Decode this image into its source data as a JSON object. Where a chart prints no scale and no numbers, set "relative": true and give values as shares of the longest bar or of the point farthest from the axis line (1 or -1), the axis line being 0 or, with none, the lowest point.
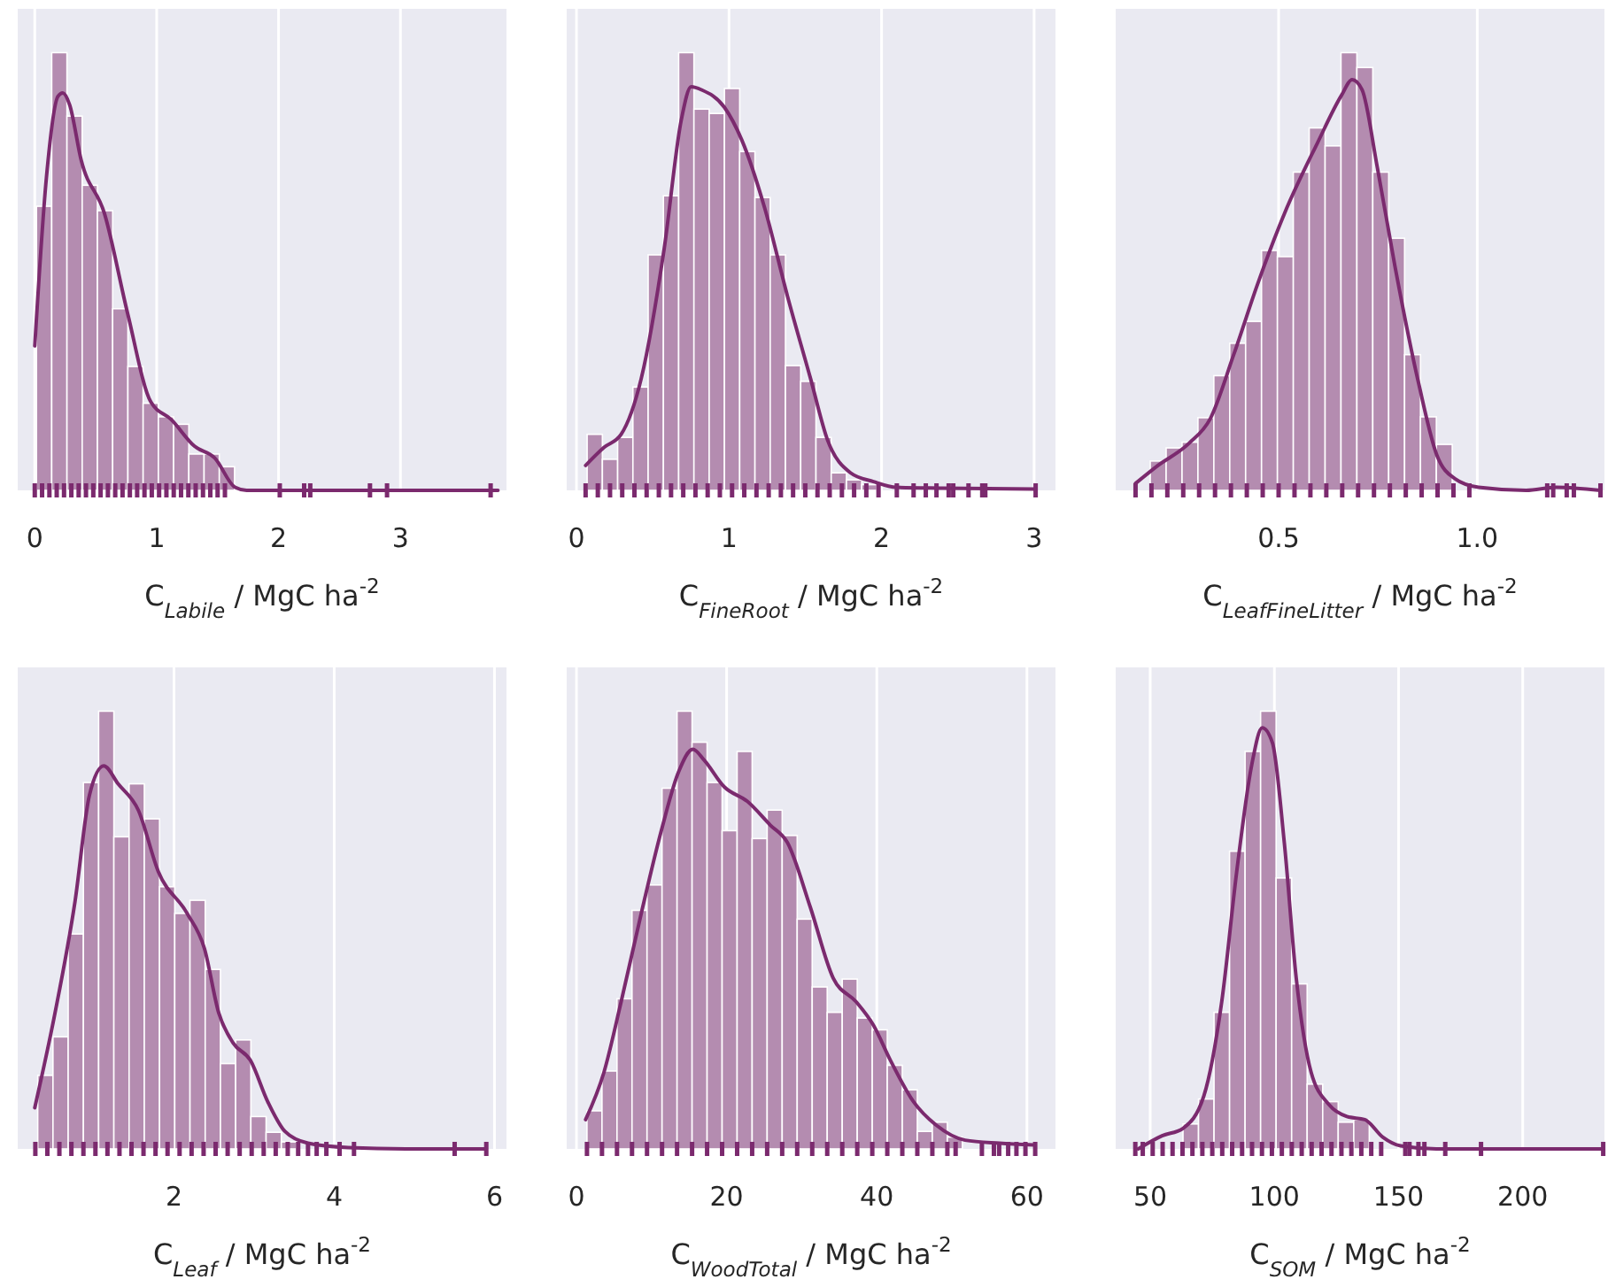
{
  "chart_data": [
    {
      "type": "histogram",
      "relative": true,
      "xlabel": "C$_{Labile}$ / MgC ha$^{-2}$",
      "color": "#b48cb0",
      "xlim": [
        -0.14,
        3.87
      ],
      "xticks": [
        0,
        1,
        2,
        3
      ],
      "grid": "x",
      "bins": [
        0.014,
        0.139,
        0.264,
        0.389,
        0.514,
        0.639,
        0.764,
        0.889,
        1.014,
        1.139,
        1.264,
        1.389,
        1.514,
        1.639
      ],
      "values": [
        0.649,
        1,
        0.855,
        0.697,
        0.639,
        0.415,
        0.283,
        0.199,
        0.168,
        0.151,
        0.083,
        0.083,
        0.054
      ],
      "series": [
        {
          "type": "line",
          "color": "#7b2a6e",
          "x": [
            0,
            0.095,
            0.19,
            0.23,
            0.286,
            0.381,
            0.571,
            0.762,
            0.952,
            1.119,
            1.31,
            1.476,
            1.643,
            1.738,
            3.8
          ],
          "values": [
            0.33,
            0.713,
            0.9,
            0.908,
            0.881,
            0.754,
            0.633,
            0.404,
            0.202,
            0.162,
            0.101,
            0.074,
            0.007,
            0,
            0
          ]
        },
        {
          "type": "scatter",
          "color": "#7b2a6e",
          "x": [
            0,
            0.06,
            0.12,
            0.18,
            0.24,
            0.3,
            0.36,
            0.42,
            0.48,
            0.54,
            0.6,
            0.66,
            0.72,
            0.78,
            0.84,
            0.9,
            0.96,
            1.02,
            1.08,
            1.14,
            1.2,
            1.26,
            1.32,
            1.38,
            1.44,
            1.5,
            1.56,
            2.01,
            2.21,
            2.26,
            2.75,
            2.89,
            3.74
          ],
          "values": [
            0,
            0,
            0,
            0,
            0,
            0,
            0,
            0,
            0,
            0,
            0,
            0,
            0,
            0,
            0,
            0,
            0,
            0,
            0,
            0,
            0,
            0,
            0,
            0,
            0,
            0,
            0,
            0,
            0,
            0,
            0,
            0,
            0
          ]
        }
      ]
    },
    {
      "type": "histogram",
      "relative": true,
      "xlabel": "C$_{FineRoot}$ / MgC ha$^{-2}$",
      "color": "#b48cb0",
      "xlim": [
        -0.064,
        3.14
      ],
      "xticks": [
        0,
        1,
        2,
        3
      ],
      "grid": "x",
      "bins": [
        0.07,
        0.17,
        0.27,
        0.37,
        0.47,
        0.57,
        0.67,
        0.77,
        0.87,
        0.97,
        1.07,
        1.17,
        1.27,
        1.37,
        1.47,
        1.57,
        1.67,
        1.77,
        1.87,
        1.97
      ],
      "values": [
        0.128,
        0.071,
        0.121,
        0.236,
        0.538,
        0.673,
        1,
        0.871,
        0.861,
        0.918,
        0.774,
        0.669,
        0.538,
        0.285,
        0.249,
        0.121,
        0.04,
        0.024,
        0.013
      ],
      "series": [
        {
          "type": "line",
          "color": "#7b2a6e",
          "x": [
            0.06,
            0.18,
            0.293,
            0.425,
            0.575,
            0.688,
            0.752,
            0.82,
            0.97,
            1.083,
            1.233,
            1.383,
            1.534,
            1.647,
            1.797,
            1.947,
            2.098,
            2.398,
            3.0
          ],
          "values": [
            0.057,
            0.098,
            0.128,
            0.256,
            0.552,
            0.848,
            0.922,
            0.915,
            0.875,
            0.801,
            0.646,
            0.444,
            0.256,
            0.114,
            0.04,
            0.02,
            0.007,
            0.005,
            0.003
          ]
        },
        {
          "type": "scatter",
          "color": "#7b2a6e",
          "x": [
            0.06,
            0.14,
            0.22,
            0.3,
            0.38,
            0.46,
            0.54,
            0.62,
            0.7,
            0.78,
            0.86,
            0.94,
            1.02,
            1.1,
            1.18,
            1.26,
            1.34,
            1.42,
            1.5,
            1.58,
            1.66,
            1.74,
            1.82,
            1.9,
            1.98,
            2.1,
            2.21,
            2.29,
            2.36,
            2.44,
            2.47,
            2.57,
            2.66,
            2.68,
            3.01
          ],
          "values": [
            0,
            0,
            0,
            0,
            0,
            0,
            0,
            0,
            0,
            0,
            0,
            0,
            0,
            0,
            0,
            0,
            0,
            0,
            0,
            0,
            0,
            0,
            0,
            0,
            0,
            0,
            0,
            0,
            0,
            0,
            0,
            0,
            0,
            0,
            0
          ]
        }
      ]
    },
    {
      "type": "histogram",
      "relative": true,
      "xlabel": "C$_{LeafFineLitter}$ / MgC ha$^{-2}$",
      "color": "#b48cb0",
      "xlim": [
        0.09,
        1.32
      ],
      "xticks": [
        0.5,
        {
          "value": 1,
          "label": "1.0"
        }
      ],
      "grid": "x",
      "bins": [
        0.177,
        0.217,
        0.257,
        0.297,
        0.337,
        0.377,
        0.417,
        0.457,
        0.497,
        0.537,
        0.577,
        0.617,
        0.657,
        0.697,
        0.737,
        0.777,
        0.817,
        0.857,
        0.897,
        0.937
      ],
      "values": [
        0.067,
        0.097,
        0.11,
        0.166,
        0.262,
        0.336,
        0.386,
        0.548,
        0.534,
        0.727,
        0.828,
        0.787,
        1,
        0.966,
        0.727,
        0.576,
        0.31,
        0.168,
        0.105
      ],
      "series": [
        {
          "type": "line",
          "color": "#7b2a6e",
          "x": [
            0.14,
            0.192,
            0.275,
            0.327,
            0.387,
            0.447,
            0.515,
            0.598,
            0.658,
            0.685,
            0.71,
            0.748,
            0.793,
            0.853,
            0.898,
            0.943,
            1.003,
            1.123,
            1.198,
            1.31
          ],
          "values": [
            0.016,
            0.054,
            0.108,
            0.162,
            0.31,
            0.471,
            0.633,
            0.794,
            0.902,
            0.938,
            0.915,
            0.74,
            0.511,
            0.242,
            0.081,
            0.027,
            0.007,
            0,
            0.007,
            0
          ]
        },
        {
          "type": "scatter",
          "color": "#7b2a6e",
          "x": [
            0.14,
            0.18,
            0.22,
            0.26,
            0.3,
            0.34,
            0.38,
            0.42,
            0.46,
            0.5,
            0.54,
            0.58,
            0.62,
            0.66,
            0.7,
            0.74,
            0.78,
            0.82,
            0.86,
            0.9,
            0.94,
            0.98,
            1.176,
            1.191,
            1.225,
            1.243,
            1.31
          ],
          "values": [
            0,
            0,
            0,
            0,
            0,
            0,
            0,
            0,
            0,
            0,
            0,
            0,
            0,
            0,
            0,
            0,
            0,
            0,
            0,
            0,
            0,
            0,
            0,
            0,
            0,
            0,
            0
          ]
        }
      ]
    },
    {
      "type": "histogram",
      "relative": true,
      "xlabel": "C$_{Leaf}$ / MgC ha$^{-2}$",
      "color": "#b48cb0",
      "xlim": [
        0.05,
        6.15
      ],
      "xticks": [
        2,
        4,
        6
      ],
      "grid": "x",
      "bins": [
        0.3,
        0.49,
        0.68,
        0.87,
        1.06,
        1.25,
        1.44,
        1.63,
        1.82,
        2.01,
        2.2,
        2.39,
        2.58,
        2.77,
        2.96,
        3.15,
        3.34,
        3.53
      ],
      "values": [
        0.168,
        0.256,
        0.491,
        0.837,
        1,
        0.713,
        0.834,
        0.754,
        0.599,
        0.538,
        0.568,
        0.41,
        0.195,
        0.249,
        0.074,
        0.038,
        0.016
      ],
      "series": [
        {
          "type": "line",
          "color": "#7b2a6e",
          "x": [
            0.263,
            0.514,
            0.765,
            0.945,
            1.124,
            1.303,
            1.555,
            1.806,
            2.165,
            2.38,
            2.56,
            2.739,
            2.955,
            3.17,
            3.385,
            3.673,
            4.175,
            4.893,
            5.898
          ],
          "values": [
            0.094,
            0.309,
            0.565,
            0.808,
            0.875,
            0.834,
            0.774,
            0.633,
            0.538,
            0.458,
            0.31,
            0.242,
            0.202,
            0.108,
            0.04,
            0.013,
            0.003,
            0,
            0
          ]
        },
        {
          "type": "scatter",
          "color": "#7b2a6e",
          "x": [
            0.27,
            0.42,
            0.57,
            0.72,
            0.87,
            1.02,
            1.17,
            1.32,
            1.47,
            1.62,
            1.77,
            1.92,
            2.07,
            2.22,
            2.37,
            2.52,
            2.67,
            2.82,
            2.97,
            3.12,
            3.27,
            3.42,
            3.55,
            3.673,
            3.781,
            3.902,
            4.067,
            4.247,
            5.503,
            5.898
          ],
          "values": [
            0,
            0,
            0,
            0,
            0,
            0,
            0,
            0,
            0,
            0,
            0,
            0,
            0,
            0,
            0,
            0,
            0,
            0,
            0,
            0,
            0,
            0,
            0,
            0,
            0,
            0,
            0,
            0,
            0,
            0
          ]
        }
      ]
    },
    {
      "type": "histogram",
      "relative": true,
      "xlabel": "C$_{WoodTotal}$ / MgC ha$^{-2}$",
      "color": "#b48cb0",
      "xlim": [
        -1.3,
        63.8
      ],
      "xticks": [
        0,
        20,
        40,
        60
      ],
      "grid": "x",
      "bins": [
        1.4,
        3.4,
        5.4,
        7.4,
        9.4,
        11.4,
        13.4,
        15.4,
        17.4,
        19.4,
        21.4,
        23.4,
        25.4,
        27.4,
        29.4,
        31.4,
        33.4,
        35.4,
        37.4,
        39.4,
        41.4,
        43.4,
        45.4,
        47.4,
        49.4,
        51.4
      ],
      "values": [
        0.087,
        0.178,
        0.343,
        0.545,
        0.603,
        0.824,
        1,
        0.929,
        0.837,
        0.727,
        0.908,
        0.709,
        0.774,
        0.716,
        0.525,
        0.37,
        0.312,
        0.388,
        0.299,
        0.272,
        0.191,
        0.135,
        0.04,
        0.061,
        0.027
      ],
      "series": [
        {
          "type": "line",
          "color": "#7b2a6e",
          "x": [
            1.22,
            3.66,
            5.95,
            8.63,
            11.3,
            13.59,
            15.5,
            17.02,
            19.69,
            22.75,
            25.8,
            28.09,
            31.15,
            34.2,
            37.25,
            39.54,
            41.83,
            44.89,
            47.94,
            51.76,
            56.34,
            60.92
          ],
          "values": [
            0.067,
            0.175,
            0.336,
            0.538,
            0.727,
            0.861,
            0.913,
            0.888,
            0.827,
            0.794,
            0.74,
            0.7,
            0.552,
            0.39,
            0.336,
            0.283,
            0.202,
            0.108,
            0.054,
            0.02,
            0.013,
            0.009
          ]
        },
        {
          "type": "scatter",
          "color": "#7b2a6e",
          "x": [
            1.4,
            3.4,
            5.4,
            7.4,
            9.4,
            11.4,
            13.4,
            15.4,
            17.4,
            19.4,
            21.4,
            23.4,
            25.4,
            27.4,
            29.4,
            31.4,
            33.4,
            35.4,
            37.4,
            39.4,
            41.4,
            43.4,
            45.4,
            47.4,
            49.4,
            50.5,
            54.0,
            55.6,
            56.3,
            57.5,
            58.6,
            59.8,
            61.1
          ],
          "values": [
            0,
            0,
            0,
            0,
            0,
            0,
            0,
            0,
            0,
            0,
            0,
            0,
            0,
            0,
            0,
            0,
            0,
            0,
            0,
            0,
            0,
            0,
            0,
            0,
            0,
            0,
            0,
            0,
            0,
            0,
            0,
            0,
            0
          ]
        }
      ]
    },
    {
      "type": "histogram",
      "relative": true,
      "xlabel": "C$_{SOM}$ / MgC ha$^{-2}$",
      "color": "#b48cb0",
      "xlim": [
        36.1,
        232.9
      ],
      "xticks": [
        50,
        100,
        150,
        200
      ],
      "grid": "x",
      "bins": [
        63.2,
        69.45,
        75.7,
        81.95,
        88.2,
        94.45,
        100.7,
        106.95,
        113.2,
        119.45,
        125.7,
        131.95,
        138.2
      ],
      "values": [
        0.057,
        0.114,
        0.312,
        0.68,
        0.908,
        1,
        0.619,
        0.377,
        0.148,
        0.108,
        0.061,
        0.067
      ],
      "series": [
        {
          "type": "line",
          "color": "#7b2a6e",
          "x": [
            45.2,
            54.8,
            63.2,
            71.6,
            78.8,
            84.8,
            90.8,
            95.1,
            99.2,
            104.0,
            108.8,
            114.8,
            122.0,
            129.2,
            136.4,
            143.6,
            150.8,
            165.2,
            232.0
          ],
          "values": [
            0,
            0.03,
            0.047,
            0.121,
            0.336,
            0.632,
            0.875,
            0.962,
            0.928,
            0.699,
            0.39,
            0.175,
            0.101,
            0.074,
            0.067,
            0.027,
            0.007,
            0,
            0
          ]
        },
        {
          "type": "scatter",
          "color": "#7b2a6e",
          "x": [
            44,
            47,
            51,
            55,
            59,
            63,
            67,
            71,
            75,
            79,
            83,
            87,
            91,
            95,
            99,
            103,
            107,
            111,
            115,
            119,
            123,
            127,
            131,
            135,
            139,
            143,
            152.7,
            154.4,
            158,
            160.4,
            168.8,
            183.2,
            232.4
          ],
          "values": [
            0,
            0,
            0,
            0,
            0,
            0,
            0,
            0,
            0,
            0,
            0,
            0,
            0,
            0,
            0,
            0,
            0,
            0,
            0,
            0,
            0,
            0,
            0,
            0,
            0,
            0,
            0,
            0,
            0,
            0,
            0,
            0,
            0
          ]
        }
      ]
    }
  ]
}
